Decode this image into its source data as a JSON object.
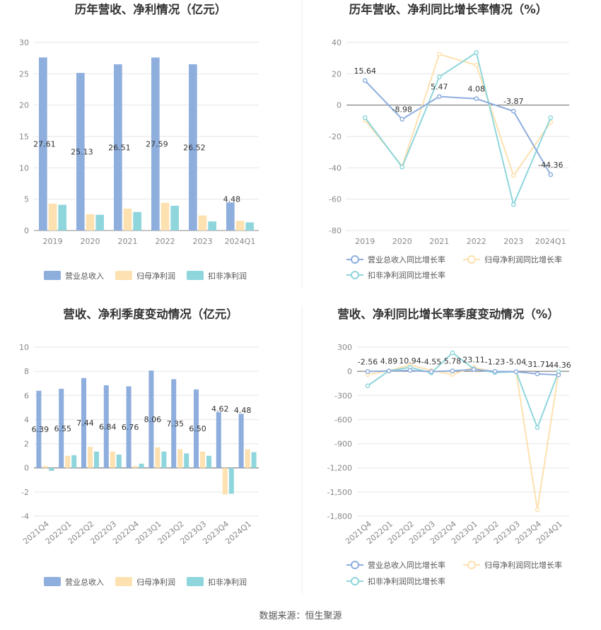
{
  "source": "数据来源：恒生聚源",
  "legend_labels": {
    "revenue": "营业总收入",
    "net_profit": "归母净利润",
    "net_profit_deducted": "扣非净利润",
    "revenue_yoy": "营业总收入同比增长率",
    "net_profit_yoy": "归母净利润同比增长率",
    "net_profit_deducted_yoy": "扣非净利润同比增长率"
  },
  "colors": {
    "revenue": "#8eaedd",
    "net_profit": "#fde1b0",
    "net_profit_deducted": "#8fd6dc",
    "revenue_line": "#8eaedd",
    "net_profit_line": "#fde1b0",
    "net_profit_deducted_line": "#8fd6dc"
  },
  "chart_data": [
    {
      "type": "bar",
      "title": "历年营收、净利情况（亿元）",
      "categories": [
        "2019",
        "2020",
        "2021",
        "2022",
        "2023",
        "2024Q1"
      ],
      "ylim": [
        0,
        30
      ],
      "yticks": [
        0,
        5,
        10,
        15,
        20,
        25,
        30
      ],
      "series": [
        {
          "name": "营业总收入",
          "values": [
            27.61,
            25.13,
            26.51,
            27.59,
            26.52,
            4.48
          ]
        },
        {
          "name": "归母净利润",
          "values": [
            4.3,
            2.6,
            3.5,
            4.4,
            2.4,
            1.55
          ]
        },
        {
          "name": "扣非净利润",
          "values": [
            4.1,
            2.5,
            2.95,
            3.95,
            1.45,
            1.3
          ]
        }
      ],
      "data_labels": [
        "27.61",
        "25.13",
        "26.51",
        "27.59",
        "26.52",
        "4.48"
      ],
      "grid": true,
      "legend": "bottom"
    },
    {
      "type": "line",
      "title": "历年营收、净利同比增长率情况（%）",
      "categories": [
        "2019",
        "2020",
        "2021",
        "2022",
        "2023",
        "2024Q1"
      ],
      "ylim": [
        -80,
        40
      ],
      "yticks": [
        40,
        20,
        0,
        -20,
        -40,
        -60,
        -80
      ],
      "series": [
        {
          "name": "营业总收入同比增长率",
          "values": [
            15.64,
            -8.98,
            5.47,
            4.08,
            -3.87,
            -44.36
          ]
        },
        {
          "name": "归母净利润同比增长率",
          "values": [
            -9.5,
            -39,
            32.5,
            25.5,
            -45,
            -11
          ]
        },
        {
          "name": "扣非净利润同比增长率",
          "values": [
            -8,
            -39.5,
            18,
            33.5,
            -63.5,
            -8
          ]
        }
      ],
      "data_labels": [
        "15.64",
        "-8.98",
        "5.47",
        "4.08",
        "-3.87",
        "-44.36"
      ],
      "grid": true,
      "legend": "bottom"
    },
    {
      "type": "bar",
      "title": "营收、净利季度变动情况（亿元）",
      "categories": [
        "2021Q4",
        "2022Q1",
        "2022Q2",
        "2022Q3",
        "2022Q4",
        "2023Q1",
        "2023Q2",
        "2023Q3",
        "2023Q4",
        "2024Q1"
      ],
      "ylim": [
        -4,
        10
      ],
      "yticks": [
        10,
        8,
        6,
        4,
        2,
        0,
        -2,
        -4
      ],
      "series": [
        {
          "name": "营业总收入",
          "values": [
            6.39,
            6.55,
            7.44,
            6.84,
            6.76,
            8.06,
            7.35,
            6.5,
            4.62,
            4.48
          ]
        },
        {
          "name": "归母净利润",
          "values": [
            0.15,
            1.0,
            1.75,
            1.35,
            0.15,
            1.7,
            1.55,
            1.35,
            -2.2,
            1.55
          ]
        },
        {
          "name": "扣非净利润",
          "values": [
            -0.25,
            1.05,
            1.35,
            1.1,
            0.35,
            1.35,
            1.2,
            1.0,
            -2.15,
            1.3
          ]
        }
      ],
      "data_labels": [
        "6.39",
        "6.55",
        "7.44",
        "6.84",
        "6.76",
        "8.06",
        "7.35",
        "6.50",
        "4.62",
        "4.48"
      ],
      "grid": true,
      "legend": "bottom"
    },
    {
      "type": "line",
      "title": "营收、净利同比增长率季度变动情况（%）",
      "categories": [
        "2021Q4",
        "2022Q1",
        "2022Q2",
        "2022Q3",
        "2022Q4",
        "2023Q1",
        "2023Q2",
        "2023Q3",
        "2023Q4",
        "2024Q1"
      ],
      "ylim": [
        -1800,
        300
      ],
      "yticks": [
        300,
        0,
        -300,
        -600,
        -900,
        -1200,
        -1500,
        -1800
      ],
      "ytick_labels": [
        "300",
        "0",
        "-300",
        "-600",
        "-900",
        "-1,200",
        "-1,500",
        "-1,800"
      ],
      "series": [
        {
          "name": "营业总收入同比增长率",
          "values": [
            -2.56,
            4.89,
            10.94,
            -4.55,
            5.78,
            23.11,
            -1.23,
            -5.04,
            -31.71,
            -44.36
          ]
        },
        {
          "name": "归母净利润同比增长率",
          "values": [
            -40,
            5,
            80,
            10,
            -40,
            50,
            -10,
            -5,
            -1720,
            -10
          ]
        },
        {
          "name": "扣非净利润同比增长率",
          "values": [
            -180,
            5,
            50,
            -20,
            230,
            30,
            -15,
            -5,
            -700,
            -5
          ]
        }
      ],
      "data_labels": [
        "-2.56",
        "4.89",
        "10.94",
        "-4.55",
        "5.78",
        "23.11",
        "-1.23",
        "-5.04",
        "-31.71",
        "-44.36"
      ],
      "grid": true,
      "legend": "bottom"
    }
  ]
}
